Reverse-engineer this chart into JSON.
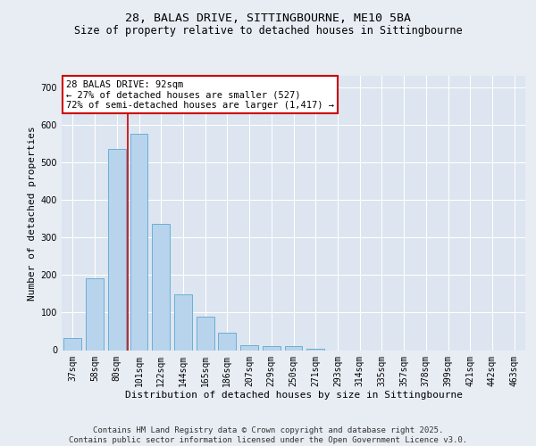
{
  "title1": "28, BALAS DRIVE, SITTINGBOURNE, ME10 5BA",
  "title2": "Size of property relative to detached houses in Sittingbourne",
  "xlabel": "Distribution of detached houses by size in Sittingbourne",
  "ylabel": "Number of detached properties",
  "categories": [
    "37sqm",
    "58sqm",
    "80sqm",
    "101sqm",
    "122sqm",
    "144sqm",
    "165sqm",
    "186sqm",
    "207sqm",
    "229sqm",
    "250sqm",
    "271sqm",
    "293sqm",
    "314sqm",
    "335sqm",
    "357sqm",
    "378sqm",
    "399sqm",
    "421sqm",
    "442sqm",
    "463sqm"
  ],
  "values": [
    33,
    190,
    535,
    575,
    335,
    148,
    88,
    47,
    13,
    10,
    10,
    3,
    0,
    0,
    0,
    0,
    0,
    0,
    0,
    0,
    0
  ],
  "bar_color": "#b8d4ec",
  "bar_edge_color": "#6aafd6",
  "vline_x_index": 2,
  "vline_color": "#cc0000",
  "annotation_text": "28 BALAS DRIVE: 92sqm\n← 27% of detached houses are smaller (527)\n72% of semi-detached houses are larger (1,417) →",
  "ylim": [
    0,
    730
  ],
  "yticks": [
    0,
    100,
    200,
    300,
    400,
    500,
    600,
    700
  ],
  "bg_color": "#e8edf4",
  "plot_bg_color": "#dce5f0",
  "grid_color": "#ffffff",
  "footer_text": "Contains HM Land Registry data © Crown copyright and database right 2025.\nContains public sector information licensed under the Open Government Licence v3.0.",
  "title1_fontsize": 9.5,
  "title2_fontsize": 8.5,
  "ylabel_fontsize": 8,
  "xlabel_fontsize": 8,
  "tick_fontsize": 7,
  "annotation_fontsize": 7.5,
  "footer_fontsize": 6.5
}
